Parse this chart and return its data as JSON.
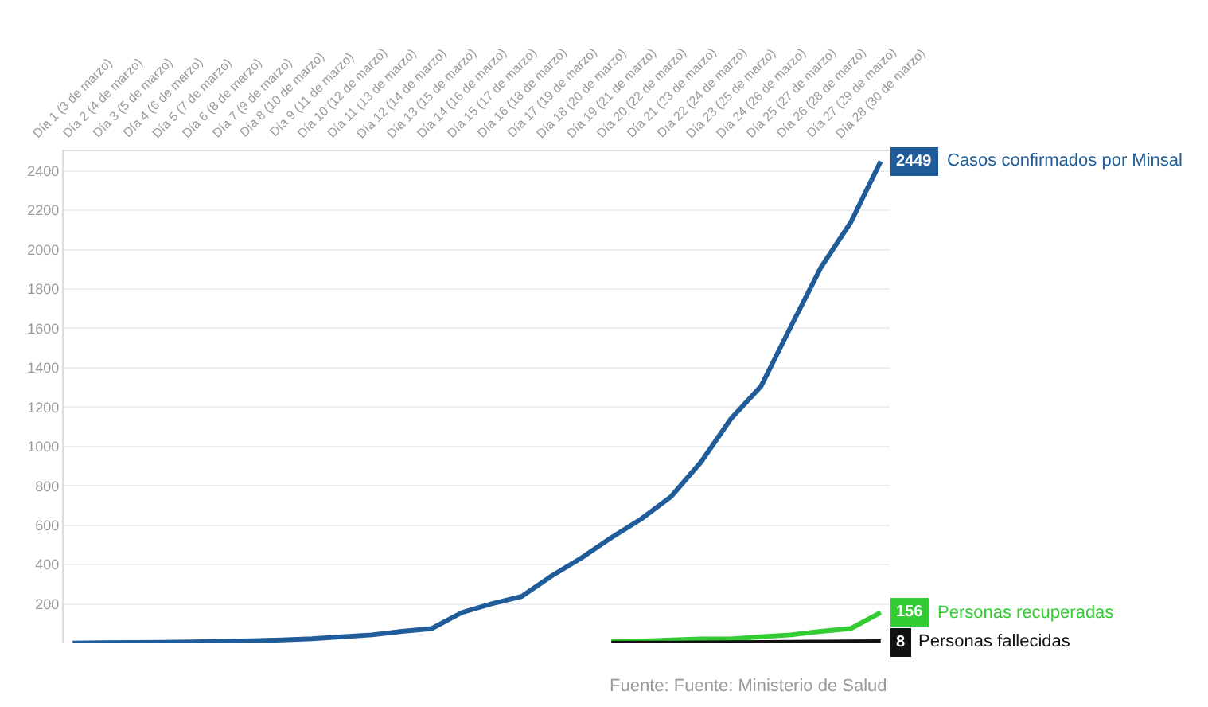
{
  "chart_data": {
    "type": "line",
    "categories": [
      "Día 1 (3 de marzo)",
      "Día 2 (4 de marzo)",
      "Día 3 (5 de marzo)",
      "Día 4 (6 de marzo)",
      "Día 5 (7 de marzo)",
      "Día 6 (8 de marzo)",
      "Día 7 (9 de marzo)",
      "Día 8 (10 de marzo)",
      "Día 9 (11 de marzo)",
      "Día 10 (12 de marzo)",
      "Día 11 (13 de marzo)",
      "Día 12 (14 de marzo)",
      "Día 13 (15 de marzo)",
      "Día 14 (16 de marzo)",
      "Día 15 (17 de marzo)",
      "Día 16 (18 de marzo)",
      "Día 17 (19 de marzo)",
      "Día 18 (20 de marzo)",
      "Día 19 (21 de marzo)",
      "Día 20 (22 de marzo)",
      "Día 21 (23 de marzo)",
      "Día 22 (24 de marzo)",
      "Día 23 (25 de marzo)",
      "Día 24 (26 de marzo)",
      "Día 25 (27 de marzo)",
      "Día 26 (28 de marzo)",
      "Día 27 (29 de marzo)",
      "Día 28 (30 de marzo)"
    ],
    "series": [
      {
        "name": "Casos confirmados por Minsal",
        "color": "#1f5c99",
        "values": [
          1,
          3,
          4,
          5,
          7,
          10,
          13,
          17,
          23,
          33,
          43,
          61,
          75,
          156,
          201,
          238,
          342,
          434,
          537,
          632,
          746,
          922,
          1142,
          1306,
          1610,
          1909,
          2139,
          2449
        ],
        "value_labels": [
          null,
          null,
          null,
          null,
          null,
          null,
          null,
          null,
          null,
          null,
          null,
          null,
          null,
          null,
          null,
          null,
          null,
          null,
          null,
          null,
          null,
          null,
          null,
          null,
          null,
          null,
          null,
          "2449"
        ]
      },
      {
        "name": "Personas recuperadas",
        "color": "#33cc33",
        "values": [
          null,
          null,
          null,
          null,
          null,
          null,
          null,
          null,
          null,
          null,
          null,
          null,
          null,
          null,
          null,
          null,
          null,
          null,
          8,
          11,
          17,
          22,
          22,
          33,
          43,
          61,
          75,
          156
        ],
        "value_labels": [
          null,
          null,
          null,
          null,
          null,
          null,
          null,
          null,
          null,
          null,
          null,
          null,
          null,
          null,
          null,
          null,
          null,
          null,
          null,
          null,
          null,
          null,
          null,
          null,
          null,
          null,
          null,
          "156"
        ]
      },
      {
        "name": "Personas fallecidas",
        "color": "#111111",
        "values": [
          null,
          null,
          null,
          null,
          null,
          null,
          null,
          null,
          null,
          null,
          null,
          null,
          null,
          null,
          null,
          null,
          null,
          null,
          1,
          1,
          1,
          2,
          3,
          4,
          5,
          6,
          7,
          8
        ],
        "value_labels": [
          null,
          null,
          null,
          null,
          null,
          null,
          null,
          null,
          null,
          null,
          null,
          null,
          null,
          null,
          null,
          null,
          null,
          null,
          null,
          null,
          null,
          null,
          null,
          null,
          null,
          null,
          null,
          "8"
        ]
      }
    ],
    "ylim": [
      0,
      2500
    ],
    "yticks": [
      200,
      400,
      600,
      800,
      1000,
      1200,
      1400,
      1600,
      1800,
      2000,
      2200,
      2400
    ],
    "grid": "y",
    "legend": "right",
    "line_style": "solid",
    "annotations": [
      "Fuente: Fuente: Ministerio de Salud"
    ]
  }
}
